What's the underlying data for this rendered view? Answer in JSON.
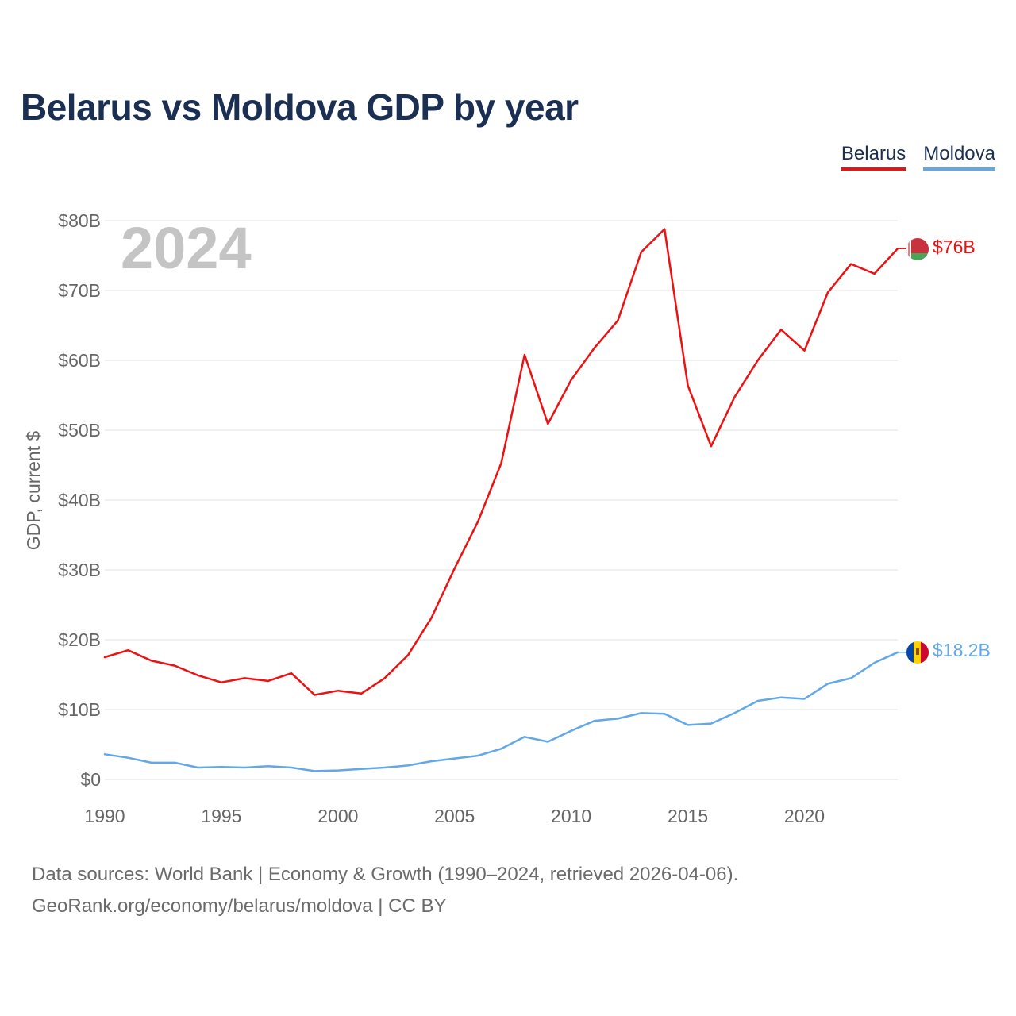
{
  "title": "Belarus vs Moldova GDP by year",
  "legend": [
    {
      "label": "Belarus",
      "color": "#ee1111"
    },
    {
      "label": "Moldova",
      "color": "#62a8e8"
    }
  ],
  "source": {
    "line1": "Data sources: World Bank | Economy & Growth (1990–2024, retrieved 2026-04-06).",
    "line2": "GeoRank.org/economy/belarus/moldova | CC BY"
  },
  "chart_data": {
    "type": "line",
    "title": "Belarus vs Moldova GDP by year",
    "year_watermark": "2024",
    "xlabel": "",
    "ylabel": "GDP, current $",
    "xlim": [
      1990,
      2024
    ],
    "ylim": [
      0,
      80
    ],
    "unit": "billion USD",
    "x_ticks": [
      1990,
      1995,
      2000,
      2005,
      2010,
      2015,
      2020
    ],
    "y_ticks": [
      {
        "value": 0,
        "label": "$0"
      },
      {
        "value": 10,
        "label": "$10B"
      },
      {
        "value": 20,
        "label": "$20B"
      },
      {
        "value": 30,
        "label": "$30B"
      },
      {
        "value": 40,
        "label": "$40B"
      },
      {
        "value": 50,
        "label": "$50B"
      },
      {
        "value": 60,
        "label": "$60B"
      },
      {
        "value": 70,
        "label": "$70B"
      },
      {
        "value": 80,
        "label": "$80B"
      }
    ],
    "grid": true,
    "legend_position": "top-right",
    "x": [
      1990,
      1991,
      1992,
      1993,
      1994,
      1995,
      1996,
      1997,
      1998,
      1999,
      2000,
      2001,
      2002,
      2003,
      2004,
      2005,
      2006,
      2007,
      2008,
      2009,
      2010,
      2011,
      2012,
      2013,
      2014,
      2015,
      2016,
      2017,
      2018,
      2019,
      2020,
      2021,
      2022,
      2023,
      2024
    ],
    "series": [
      {
        "name": "Belarus",
        "color": "#ee1111",
        "end_label": "$76B",
        "flag": "belarus-flag-icon",
        "values": [
          17.5,
          18.5,
          17.0,
          16.3,
          14.9,
          13.9,
          14.5,
          14.1,
          15.2,
          12.1,
          12.7,
          12.3,
          14.5,
          17.8,
          23.1,
          30.2,
          36.9,
          45.3,
          60.8,
          50.9,
          57.2,
          61.8,
          65.7,
          75.5,
          78.8,
          56.4,
          47.7,
          54.7,
          60.0,
          64.4,
          61.4,
          69.7,
          73.8,
          72.4,
          76.0
        ]
      },
      {
        "name": "Moldova",
        "color": "#62a8e8",
        "end_label": "$18.2B",
        "flag": "moldova-flag-icon",
        "values": [
          3.6,
          3.1,
          2.4,
          2.4,
          1.7,
          1.8,
          1.7,
          1.9,
          1.7,
          1.2,
          1.3,
          1.5,
          1.7,
          2.0,
          2.6,
          3.0,
          3.4,
          4.4,
          6.1,
          5.4,
          6.97,
          8.4,
          8.7,
          9.5,
          9.4,
          7.8,
          8.0,
          9.5,
          11.25,
          11.74,
          11.53,
          13.7,
          14.5,
          16.7,
          18.2
        ]
      }
    ]
  }
}
